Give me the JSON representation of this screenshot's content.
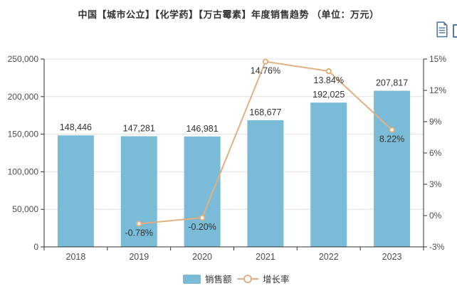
{
  "title": "中国【城市公立】【化学药】【万古霉素】年度销售趋势 （单位：万元）",
  "toolbar": {
    "icons": [
      "data-view-document-icon",
      "clipped-icon-right-edge"
    ]
  },
  "legend": {
    "items": [
      {
        "label": "销售额",
        "symbol": "bar-swatch"
      },
      {
        "label": "增长率",
        "symbol": "line-with-circle"
      }
    ]
  },
  "colors": {
    "bar": "#7ABCD8",
    "line": "#E2B07F",
    "grid": "#E0E0E0",
    "axis": "#333333",
    "tick_label": "#4D4D4D",
    "data_label": "#333333",
    "icon": "#54789E"
  },
  "chart_data": {
    "type": "bar",
    "title": "中国【城市公立】【化学药】【万古霉素】年度销售趋势 （单位：万元）",
    "categories": [
      "2018",
      "2019",
      "2020",
      "2021",
      "2022",
      "2023"
    ],
    "series": [
      {
        "name": "销售额",
        "type": "bar",
        "axis": "left",
        "values": [
          148446,
          147281,
          146981,
          168677,
          192025,
          207817
        ],
        "labels": [
          "148,446",
          "147,281",
          "146,981",
          "168,677",
          "192,025",
          "207,817"
        ],
        "color": "#7ABCD8"
      },
      {
        "name": "增长率",
        "type": "line",
        "axis": "right",
        "values": [
          null,
          -0.78,
          -0.2,
          14.76,
          13.84,
          8.22
        ],
        "labels": [
          null,
          "-0.78%",
          "-0.20%",
          "14.76%",
          "13.84%",
          "8.22%"
        ],
        "color": "#E2B07F"
      }
    ],
    "left_axis": {
      "min": 0,
      "max": 250000,
      "step": 50000,
      "values": [
        0,
        50000,
        100000,
        150000,
        200000,
        250000
      ],
      "labels": [
        "0",
        "50,000",
        "100,000",
        "150,000",
        "200,000",
        "250,000"
      ]
    },
    "right_axis": {
      "min": -3,
      "max": 15,
      "step": 3,
      "values": [
        -3,
        0,
        3,
        6,
        9,
        12,
        15
      ],
      "labels": [
        "-3%",
        "0%",
        "3%",
        "6%",
        "9%",
        "12%",
        "15%"
      ]
    },
    "grid": true,
    "legend_position": "bottom"
  }
}
